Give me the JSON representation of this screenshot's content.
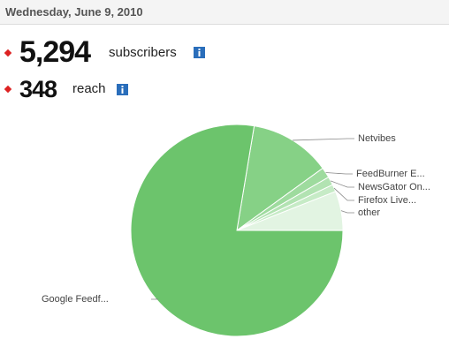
{
  "header": {
    "date": "Wednesday, June 9, 2010"
  },
  "stats": [
    {
      "value": "5,294",
      "label": "subscribers"
    },
    {
      "value": "348",
      "label": "reach"
    }
  ],
  "chart_data": {
    "type": "pie",
    "categories": [
      "Netvibes",
      "FeedBurner E...",
      "NewsGator On...",
      "Firefox Live...",
      "other",
      "Google Feedf..."
    ],
    "values": [
      12.4,
      1.6,
      1.3,
      1.1,
      6.0,
      77.6
    ],
    "colors": [
      "#86d186",
      "#9edb9e",
      "#b2e3b2",
      "#c6ebc6",
      "#e2f4e2",
      "#6cc46c"
    ]
  }
}
